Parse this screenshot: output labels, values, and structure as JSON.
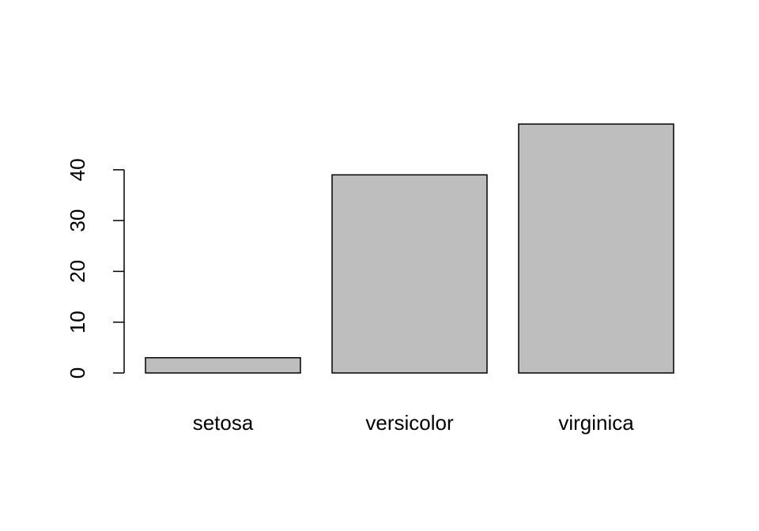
{
  "chart_data": {
    "type": "bar",
    "categories": [
      "setosa",
      "versicolor",
      "virginica"
    ],
    "values": [
      3,
      39,
      49
    ],
    "color": "#bebebe",
    "ylim": [
      -1.96,
      50.96
    ],
    "yticks": [
      0,
      10,
      20,
      30,
      40
    ],
    "grid": false
  }
}
